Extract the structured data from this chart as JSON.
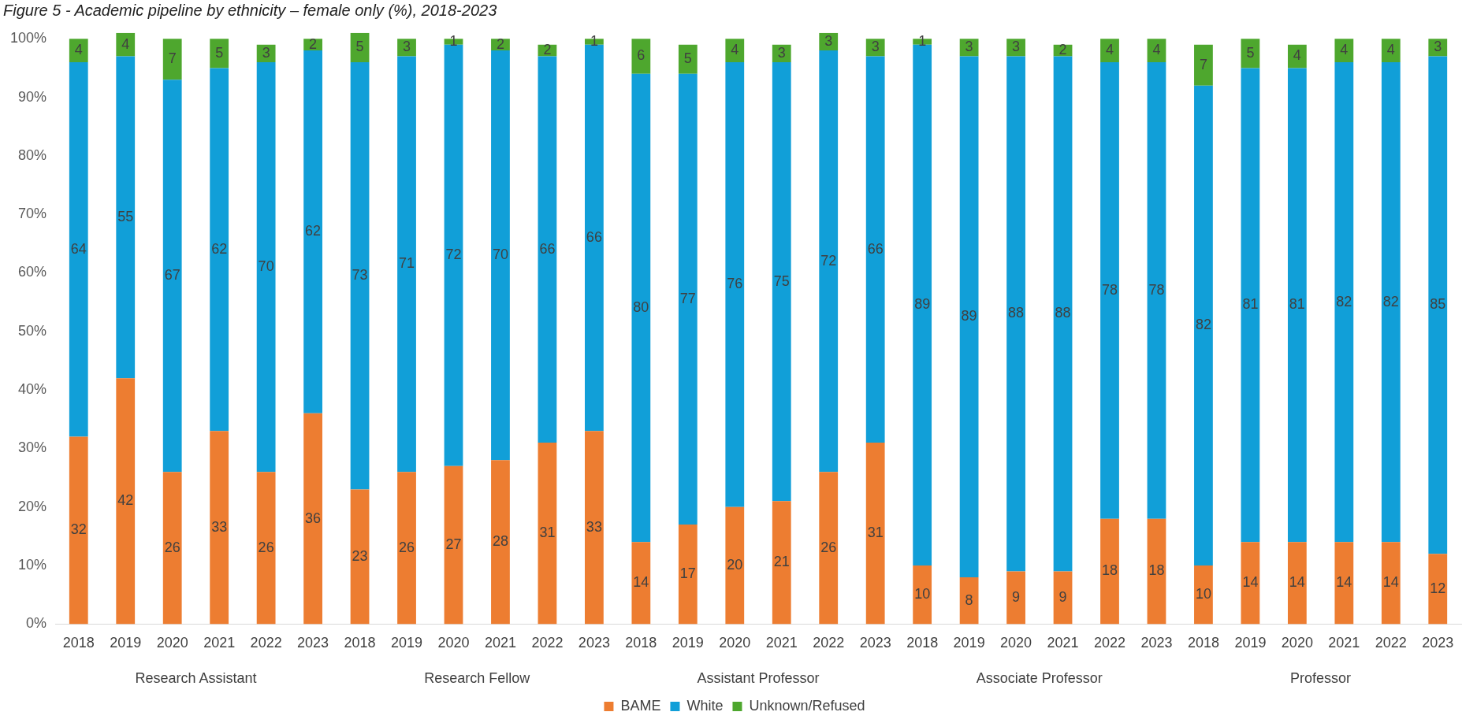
{
  "chart_data": {
    "type": "bar",
    "stacked": true,
    "title": "Figure 5 - Academic pipeline by ethnicity – female only (%), 2018-2023",
    "categories": [
      "2018",
      "2019",
      "2020",
      "2021",
      "2022",
      "2023",
      "2018",
      "2019",
      "2020",
      "2021",
      "2022",
      "2023",
      "2018",
      "2019",
      "2020",
      "2021",
      "2022",
      "2023",
      "2018",
      "2019",
      "2020",
      "2021",
      "2022",
      "2023",
      "2018",
      "2019",
      "2020",
      "2021",
      "2022",
      "2023"
    ],
    "series": [
      {
        "name": "BAME",
        "color": "#ed7d31",
        "values": [
          32,
          42,
          26,
          33,
          26,
          36,
          23,
          26,
          27,
          28,
          31,
          33,
          14,
          17,
          20,
          21,
          26,
          31,
          10,
          8,
          9,
          9,
          18,
          18,
          10,
          14,
          14,
          14,
          14,
          12
        ]
      },
      {
        "name": "White",
        "color": "#119fd8",
        "values": [
          64,
          55,
          67,
          62,
          70,
          62,
          73,
          71,
          72,
          70,
          66,
          66,
          80,
          77,
          76,
          75,
          72,
          66,
          89,
          89,
          88,
          88,
          78,
          78,
          82,
          81,
          81,
          82,
          82,
          85
        ]
      },
      {
        "name": "Unknown/Refused",
        "color": "#4ea72e",
        "values": [
          4,
          4,
          7,
          5,
          3,
          2,
          5,
          3,
          1,
          2,
          2,
          1,
          6,
          5,
          4,
          3,
          3,
          3,
          1,
          3,
          3,
          2,
          4,
          4,
          7,
          5,
          4,
          4,
          4,
          3
        ]
      }
    ],
    "annotations": [
      "Research Assistant",
      "Research Fellow",
      "Assistant Professor",
      "Associate Professor",
      "Professor"
    ],
    "ylim": [
      0,
      101
    ],
    "yticks": [
      {
        "value": 0,
        "label": "0%"
      },
      {
        "value": 10,
        "label": "10%"
      },
      {
        "value": 20,
        "label": "20%"
      },
      {
        "value": 30,
        "label": "30%"
      },
      {
        "value": 40,
        "label": "40%"
      },
      {
        "value": 50,
        "label": "50%"
      },
      {
        "value": 60,
        "label": "60%"
      },
      {
        "value": 70,
        "label": "70%"
      },
      {
        "value": 80,
        "label": "80%"
      },
      {
        "value": 90,
        "label": "90%"
      },
      {
        "value": 100,
        "label": "100%"
      }
    ],
    "grid": false,
    "legend": "bottom",
    "data_labels": true
  }
}
